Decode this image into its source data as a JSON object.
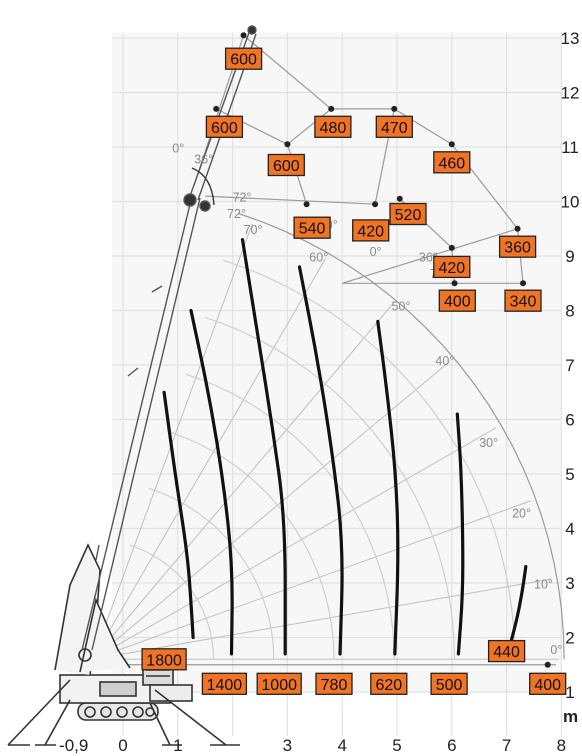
{
  "chart_data": {
    "type": "diagram",
    "title": "",
    "x_unit": "m",
    "x_ticks": [
      "-0,9",
      "0",
      "1",
      "3",
      "4",
      "5",
      "6",
      "7",
      "8"
    ],
    "y_ticks": [
      "1",
      "2",
      "3",
      "4",
      "5",
      "6",
      "7",
      "8",
      "9",
      "10",
      "11",
      "12",
      "13"
    ],
    "xlim": [
      -1.1,
      8.1
    ],
    "ylim": [
      0.1,
      13.3
    ],
    "angle_labels": [
      {
        "text": "0°",
        "x": 7.8,
        "y": 1.7
      },
      {
        "text": "10°",
        "x": 7.5,
        "y": 2.9
      },
      {
        "text": "20°",
        "x": 7.1,
        "y": 4.2
      },
      {
        "text": "30°",
        "x": 6.5,
        "y": 5.5
      },
      {
        "text": "40°",
        "x": 5.7,
        "y": 7.0
      },
      {
        "text": "50°",
        "x": 4.9,
        "y": 8.0
      },
      {
        "text": "60°",
        "x": 3.4,
        "y": 8.9
      },
      {
        "text": "70°",
        "x": 2.2,
        "y": 9.4
      },
      {
        "text": "72°",
        "x": 1.9,
        "y": 9.7
      },
      {
        "text": "0°",
        "x": 0.9,
        "y": 10.9
      },
      {
        "text": "36°",
        "x": 1.3,
        "y": 10.7
      },
      {
        "text": "72°",
        "x": 2.0,
        "y": 10.0
      },
      {
        "text": "0°",
        "x": 3.7,
        "y": 9.5
      },
      {
        "text": "0°",
        "x": 4.5,
        "y": 9.0
      },
      {
        "text": "36°",
        "x": 5.4,
        "y": 8.9
      },
      {
        "text": "72°",
        "x": 5.6,
        "y": 8.6
      }
    ],
    "lower_curves": [
      {
        "load": "1800",
        "label_x": 0.75,
        "label_y": 1.6,
        "points": [
          [
            0.75,
            6.5
          ],
          [
            0.95,
            5.0
          ],
          [
            1.18,
            3.5
          ],
          [
            1.25,
            2.5
          ],
          [
            1.28,
            2.0
          ]
        ]
      },
      {
        "load": "1400",
        "label_x": 1.85,
        "label_y": 1.15,
        "points": [
          [
            1.24,
            8.0
          ],
          [
            1.58,
            6.4
          ],
          [
            1.84,
            4.8
          ],
          [
            2.0,
            3.3
          ],
          [
            1.98,
            1.7
          ]
        ]
      },
      {
        "load": "1000",
        "label_x": 2.85,
        "label_y": 1.15,
        "points": [
          [
            2.18,
            9.3
          ],
          [
            2.45,
            7.6
          ],
          [
            2.72,
            5.9
          ],
          [
            2.96,
            4.2
          ],
          [
            2.96,
            1.7
          ]
        ]
      },
      {
        "load": "780",
        "label_x": 3.85,
        "label_y": 1.15,
        "points": [
          [
            3.22,
            8.8
          ],
          [
            3.55,
            7.1
          ],
          [
            3.82,
            5.4
          ],
          [
            4.02,
            3.7
          ],
          [
            3.96,
            1.7
          ]
        ]
      },
      {
        "load": "620",
        "label_x": 4.85,
        "label_y": 1.15,
        "points": [
          [
            4.65,
            7.8
          ],
          [
            4.82,
            6.5
          ],
          [
            4.98,
            5.0
          ],
          [
            5.03,
            3.5
          ],
          [
            4.96,
            1.7
          ]
        ]
      },
      {
        "load": "500",
        "label_x": 5.95,
        "label_y": 1.15,
        "points": [
          [
            6.1,
            6.1
          ],
          [
            6.17,
            5.1
          ],
          [
            6.2,
            3.9
          ],
          [
            6.2,
            2.8
          ],
          [
            6.12,
            1.7
          ]
        ]
      },
      {
        "load": "440",
        "label_x": 7.0,
        "label_y": 1.75,
        "points": [
          [
            7.35,
            3.3
          ],
          [
            7.28,
            2.8
          ],
          [
            7.18,
            2.3
          ],
          [
            7.02,
            1.7
          ]
        ]
      }
    ],
    "fixed_points": [
      {
        "load": "600",
        "x": 2.2,
        "y": 13.05,
        "label_x": 2.2,
        "label_y": 12.62
      },
      {
        "load": "600",
        "x": 1.7,
        "y": 11.7,
        "label_x": 1.85,
        "label_y": 11.37
      },
      {
        "load": "480",
        "x": 3.8,
        "y": 11.7,
        "label_x": 3.83,
        "label_y": 11.37
      },
      {
        "load": "470",
        "x": 4.95,
        "y": 11.7,
        "label_x": 4.95,
        "label_y": 11.37
      },
      {
        "load": "600",
        "x": 3.0,
        "y": 11.05,
        "label_x": 2.98,
        "label_y": 10.67
      },
      {
        "load": "460",
        "x": 6.0,
        "y": 11.05,
        "label_x": 6.0,
        "label_y": 10.72
      },
      {
        "load": "540",
        "x": 3.35,
        "y": 9.95,
        "label_x": 3.45,
        "label_y": 9.52
      },
      {
        "load": "420",
        "x": 4.6,
        "y": 9.95,
        "label_x": 4.52,
        "label_y": 9.47
      },
      {
        "load": "520",
        "x": 5.05,
        "y": 10.05,
        "label_x": 5.2,
        "label_y": 9.77
      },
      {
        "load": "420",
        "x": 6.0,
        "y": 9.15,
        "label_x": 6.0,
        "label_y": 8.8
      },
      {
        "load": "360",
        "x": 7.2,
        "y": 9.5,
        "label_x": 7.2,
        "label_y": 9.17
      },
      {
        "load": "400",
        "x": 6.05,
        "y": 8.5,
        "label_x": 6.1,
        "label_y": 8.18
      },
      {
        "load": "340",
        "x": 7.3,
        "y": 8.5,
        "label_x": 7.3,
        "label_y": 8.18
      },
      {
        "load": "400",
        "x": 7.75,
        "y": 1.5,
        "label_x": 7.75,
        "label_y": 1.15
      }
    ],
    "colors": {
      "label_fill": "#f07424",
      "label_stroke": "#222222",
      "grid": "#e2e2e2",
      "curve": "#111111",
      "arc": "#9a9a9a",
      "mast": "#555555"
    }
  }
}
